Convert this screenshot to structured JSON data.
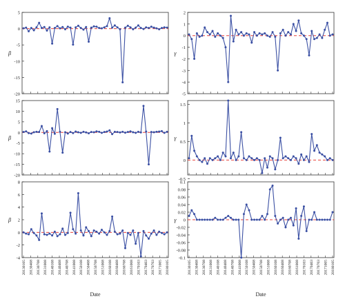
{
  "figure": {
    "xlabel": "Date",
    "x_tick_labels": [
      "20130105",
      "20130408",
      "20130708",
      "20131008",
      "20140108",
      "20140408",
      "20140708",
      "20141008",
      "20150108",
      "20150408",
      "20150708",
      "20151008",
      "20160108",
      "20160408",
      "20160708",
      "20161008",
      "20170103",
      "20170403",
      "20170703",
      "20171005",
      "20180105"
    ]
  },
  "chart_data": [
    {
      "type": "line",
      "panel": "top-left",
      "ylabel": "β",
      "ylim": [
        -20,
        5
      ],
      "yticks": [
        "5",
        "0",
        "-5",
        "-10",
        "-15",
        "-20"
      ],
      "ytick_values": [
        5,
        0,
        -5,
        -10,
        -15,
        -20
      ],
      "reference_line": 0,
      "line_color": "#3a4fa3",
      "ref_color": "#e8413a",
      "grid": false,
      "values": [
        0.1,
        0.3,
        -0.8,
        0.2,
        -0.5,
        0.4,
        1.8,
        0.2,
        0.5,
        -0.6,
        0.4,
        -4.6,
        0.2,
        0.8,
        0.1,
        0.5,
        -0.2,
        0.6,
        0.3,
        -4.9,
        0.4,
        0.9,
        0.2,
        -0.3,
        0.5,
        -4.0,
        0.3,
        0.7,
        0.6,
        0.2,
        0.1,
        0.4,
        0.8,
        3.2,
        0.3,
        1.0,
        0.4,
        -0.2,
        -16.5,
        0.3,
        0.9,
        0.4,
        -0.2,
        0.3,
        1.0,
        0.2,
        -0.1,
        0.4,
        0.2,
        0.6,
        0.3,
        0.1,
        -0.2,
        0.2,
        0.4,
        0.3
      ]
    },
    {
      "type": "line",
      "panel": "top-right",
      "ylabel": "γ",
      "ylim": [
        -5,
        2
      ],
      "yticks": [
        "2",
        "1",
        "0",
        "-1",
        "-2",
        "-3",
        "-4",
        "-5"
      ],
      "ytick_values": [
        2,
        1,
        0,
        -1,
        -2,
        -3,
        -4,
        -5
      ],
      "reference_line": 0,
      "line_color": "#3a4fa3",
      "ref_color": "#e8413a",
      "grid": false,
      "values": [
        0.1,
        -0.3,
        -2.0,
        0.2,
        -0.1,
        0.0,
        0.7,
        0.3,
        0.1,
        0.4,
        -0.1,
        0.2,
        0.0,
        -0.2,
        -1.0,
        -4.0,
        1.7,
        -0.5,
        0.5,
        0.1,
        0.3,
        0.0,
        0.2,
        0.1,
        -0.6,
        0.3,
        0.0,
        0.2,
        0.1,
        0.2,
        0.0,
        -0.1,
        0.3,
        -0.1,
        -3.0,
        0.2,
        0.5,
        0.0,
        0.3,
        0.1,
        1.0,
        0.4,
        1.3,
        0.2,
        0.0,
        -0.3,
        -1.7,
        0.4,
        -0.3,
        -0.2,
        0.1,
        -0.2,
        0.5,
        1.1,
        0.0,
        0.1
      ]
    },
    {
      "type": "line",
      "panel": "middle-left",
      "ylabel": "β",
      "ylim": [
        -20,
        15
      ],
      "yticks": [
        "15",
        "10",
        "5",
        "0",
        "-5",
        "-10",
        "-15",
        "-20"
      ],
      "ytick_values": [
        15,
        10,
        5,
        0,
        -5,
        -10,
        -15,
        -20
      ],
      "reference_line": 0,
      "line_color": "#3a4fa3",
      "ref_color": "#e8413a",
      "grid": false,
      "values": [
        0.2,
        0.5,
        -0.3,
        -0.5,
        0.1,
        0.3,
        0.2,
        3.0,
        -0.4,
        0.6,
        -9.0,
        2.0,
        -0.6,
        11.0,
        0.3,
        -9.5,
        0.1,
        -0.5,
        0.2,
        -0.3,
        0.4,
        0.1,
        -0.2,
        0.3,
        0.0,
        -0.4,
        0.2,
        0.1,
        0.5,
        0.3,
        -0.2,
        0.2,
        0.4,
        1.0,
        -0.8,
        0.3,
        0.2,
        0.0,
        0.3,
        -0.1,
        0.2,
        0.5,
        0.1,
        -0.2,
        0.3,
        0.0,
        12.5,
        0.4,
        -15.0,
        0.2,
        0.1,
        0.3,
        0.4,
        0.6,
        -0.2,
        0.3
      ]
    },
    {
      "type": "line",
      "panel": "middle-right",
      "ylabel": "γ",
      "ylim": [
        -0.4,
        1.6
      ],
      "yticks": [
        "1.5",
        "1",
        "0.5",
        "0",
        "-0.5"
      ],
      "ytick_values": [
        1.5,
        1,
        0.5,
        0,
        -0.5
      ],
      "reference_line": 0,
      "line_color": "#3a4fa3",
      "ref_color": "#e8413a",
      "grid": false,
      "values": [
        0.05,
        0.65,
        0.25,
        0.1,
        0.0,
        -0.05,
        0.05,
        -0.1,
        0.05,
        0.0,
        0.05,
        0.1,
        0.0,
        0.2,
        0.1,
        1.6,
        0.05,
        0.2,
        0.0,
        0.1,
        0.75,
        0.05,
        0.0,
        0.1,
        0.05,
        0.0,
        0.05,
        0.0,
        -0.35,
        0.05,
        -0.2,
        0.1,
        0.05,
        -0.25,
        0.0,
        0.6,
        0.05,
        0.1,
        0.05,
        0.0,
        0.1,
        0.05,
        -0.1,
        0.15,
        0.0,
        0.1,
        -0.05,
        0.7,
        0.25,
        0.4,
        0.2,
        0.15,
        0.1,
        0.0,
        0.05,
        0.0
      ]
    },
    {
      "type": "line",
      "panel": "bottom-left",
      "ylabel": "β",
      "ylim": [
        -4,
        8
      ],
      "yticks": [
        "8",
        "6",
        "4",
        "2",
        "0",
        "-2",
        "-4"
      ],
      "ytick_values": [
        8,
        6,
        4,
        2,
        0,
        -2,
        -4
      ],
      "reference_line": 0,
      "line_color": "#3a4fa3",
      "ref_color": "#e8413a",
      "grid": false,
      "values": [
        0.0,
        -0.2,
        -0.3,
        0.5,
        -0.1,
        -0.5,
        -1.2,
        3.0,
        -0.3,
        -0.4,
        -0.2,
        -0.5,
        0.1,
        -0.6,
        -0.3,
        0.6,
        -0.4,
        -0.1,
        3.1,
        0.5,
        -0.2,
        6.2,
        0.3,
        -0.5,
        0.8,
        0.2,
        -0.6,
        0.3,
        0.1,
        -0.2,
        0.4,
        0.0,
        -0.4,
        0.2,
        2.5,
        0.1,
        -0.3,
        -0.2,
        0.3,
        -2.5,
        -0.1,
        -0.4,
        0.3,
        -1.8,
        -0.1,
        -3.8,
        0.2,
        -0.5,
        -1.0,
        -0.2,
        0.3,
        -0.4,
        0.1,
        -0.1,
        -0.3,
        0.0
      ]
    },
    {
      "type": "line",
      "panel": "bottom-right",
      "ylabel": "γ",
      "ylim": [
        -0.1,
        0.1
      ],
      "yticks": [
        "0.1",
        "0.08",
        "0.06",
        "0.04",
        "0.02",
        "0",
        "-0.02",
        "-0.04",
        "-0.06",
        "-0.08",
        "-0.1"
      ],
      "ytick_values": [
        0.1,
        0.08,
        0.06,
        0.04,
        0.02,
        0,
        -0.02,
        -0.04,
        -0.06,
        -0.08,
        -0.1
      ],
      "reference_line": 0,
      "line_color": "#3a4fa3",
      "ref_color": "#e8413a",
      "grid": false,
      "values": [
        0.01,
        0.025,
        0.015,
        0.0,
        0.0,
        0.0,
        0.0,
        0.0,
        0.0,
        0.0,
        0.005,
        0.0,
        0.0,
        0.0,
        0.005,
        0.01,
        0.005,
        0.0,
        0.0,
        0.0,
        -0.1,
        0.015,
        0.04,
        0.025,
        0.0,
        0.0,
        0.0,
        0.0,
        0.01,
        0.0,
        0.015,
        0.08,
        0.09,
        0.01,
        -0.01,
        0.0,
        0.005,
        -0.02,
        0.0,
        0.005,
        -0.015,
        0.03,
        -0.05,
        0.01,
        0.035,
        -0.03,
        0.0,
        0.0,
        0.02,
        0.0,
        0.0,
        0.0,
        0.0,
        0.0,
        0.0,
        0.02
      ]
    }
  ]
}
